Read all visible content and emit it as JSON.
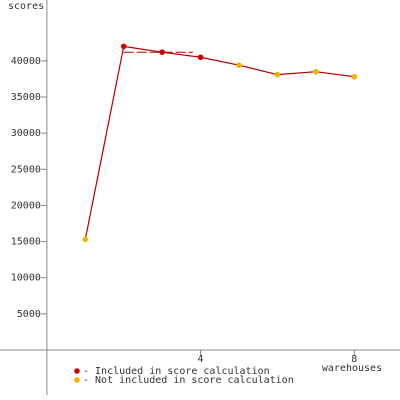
{
  "chart_data": {
    "type": "line",
    "y_label": "scores",
    "x_label": "warehouses",
    "x": [
      1,
      2,
      3,
      4,
      5,
      6,
      7,
      8
    ],
    "values": [
      15300,
      42000,
      41200,
      40500,
      39400,
      38100,
      38500,
      37800
    ],
    "line_color": "#b00000",
    "point_colors": [
      "#f0b400",
      "#d00000",
      "#d00000",
      "#d00000",
      "#f0b400",
      "#f0b400",
      "#f0b400",
      "#f0b400"
    ],
    "reference_line": {
      "value": 41200,
      "x": [
        2,
        3.8
      ],
      "color": "#b00000"
    },
    "legend": [
      {
        "label": "- Included in score calculation",
        "color": "#d00000"
      },
      {
        "label": "- Not included in score calculation",
        "color": "#f0b400"
      }
    ],
    "xlim": [
      -1.22,
      9.19
    ],
    "ylim": [
      -6220,
      48420
    ],
    "xticks": [
      4,
      8
    ],
    "yticks": [
      5000,
      10000,
      15000,
      20000,
      25000,
      30000,
      35000,
      40000
    ]
  }
}
